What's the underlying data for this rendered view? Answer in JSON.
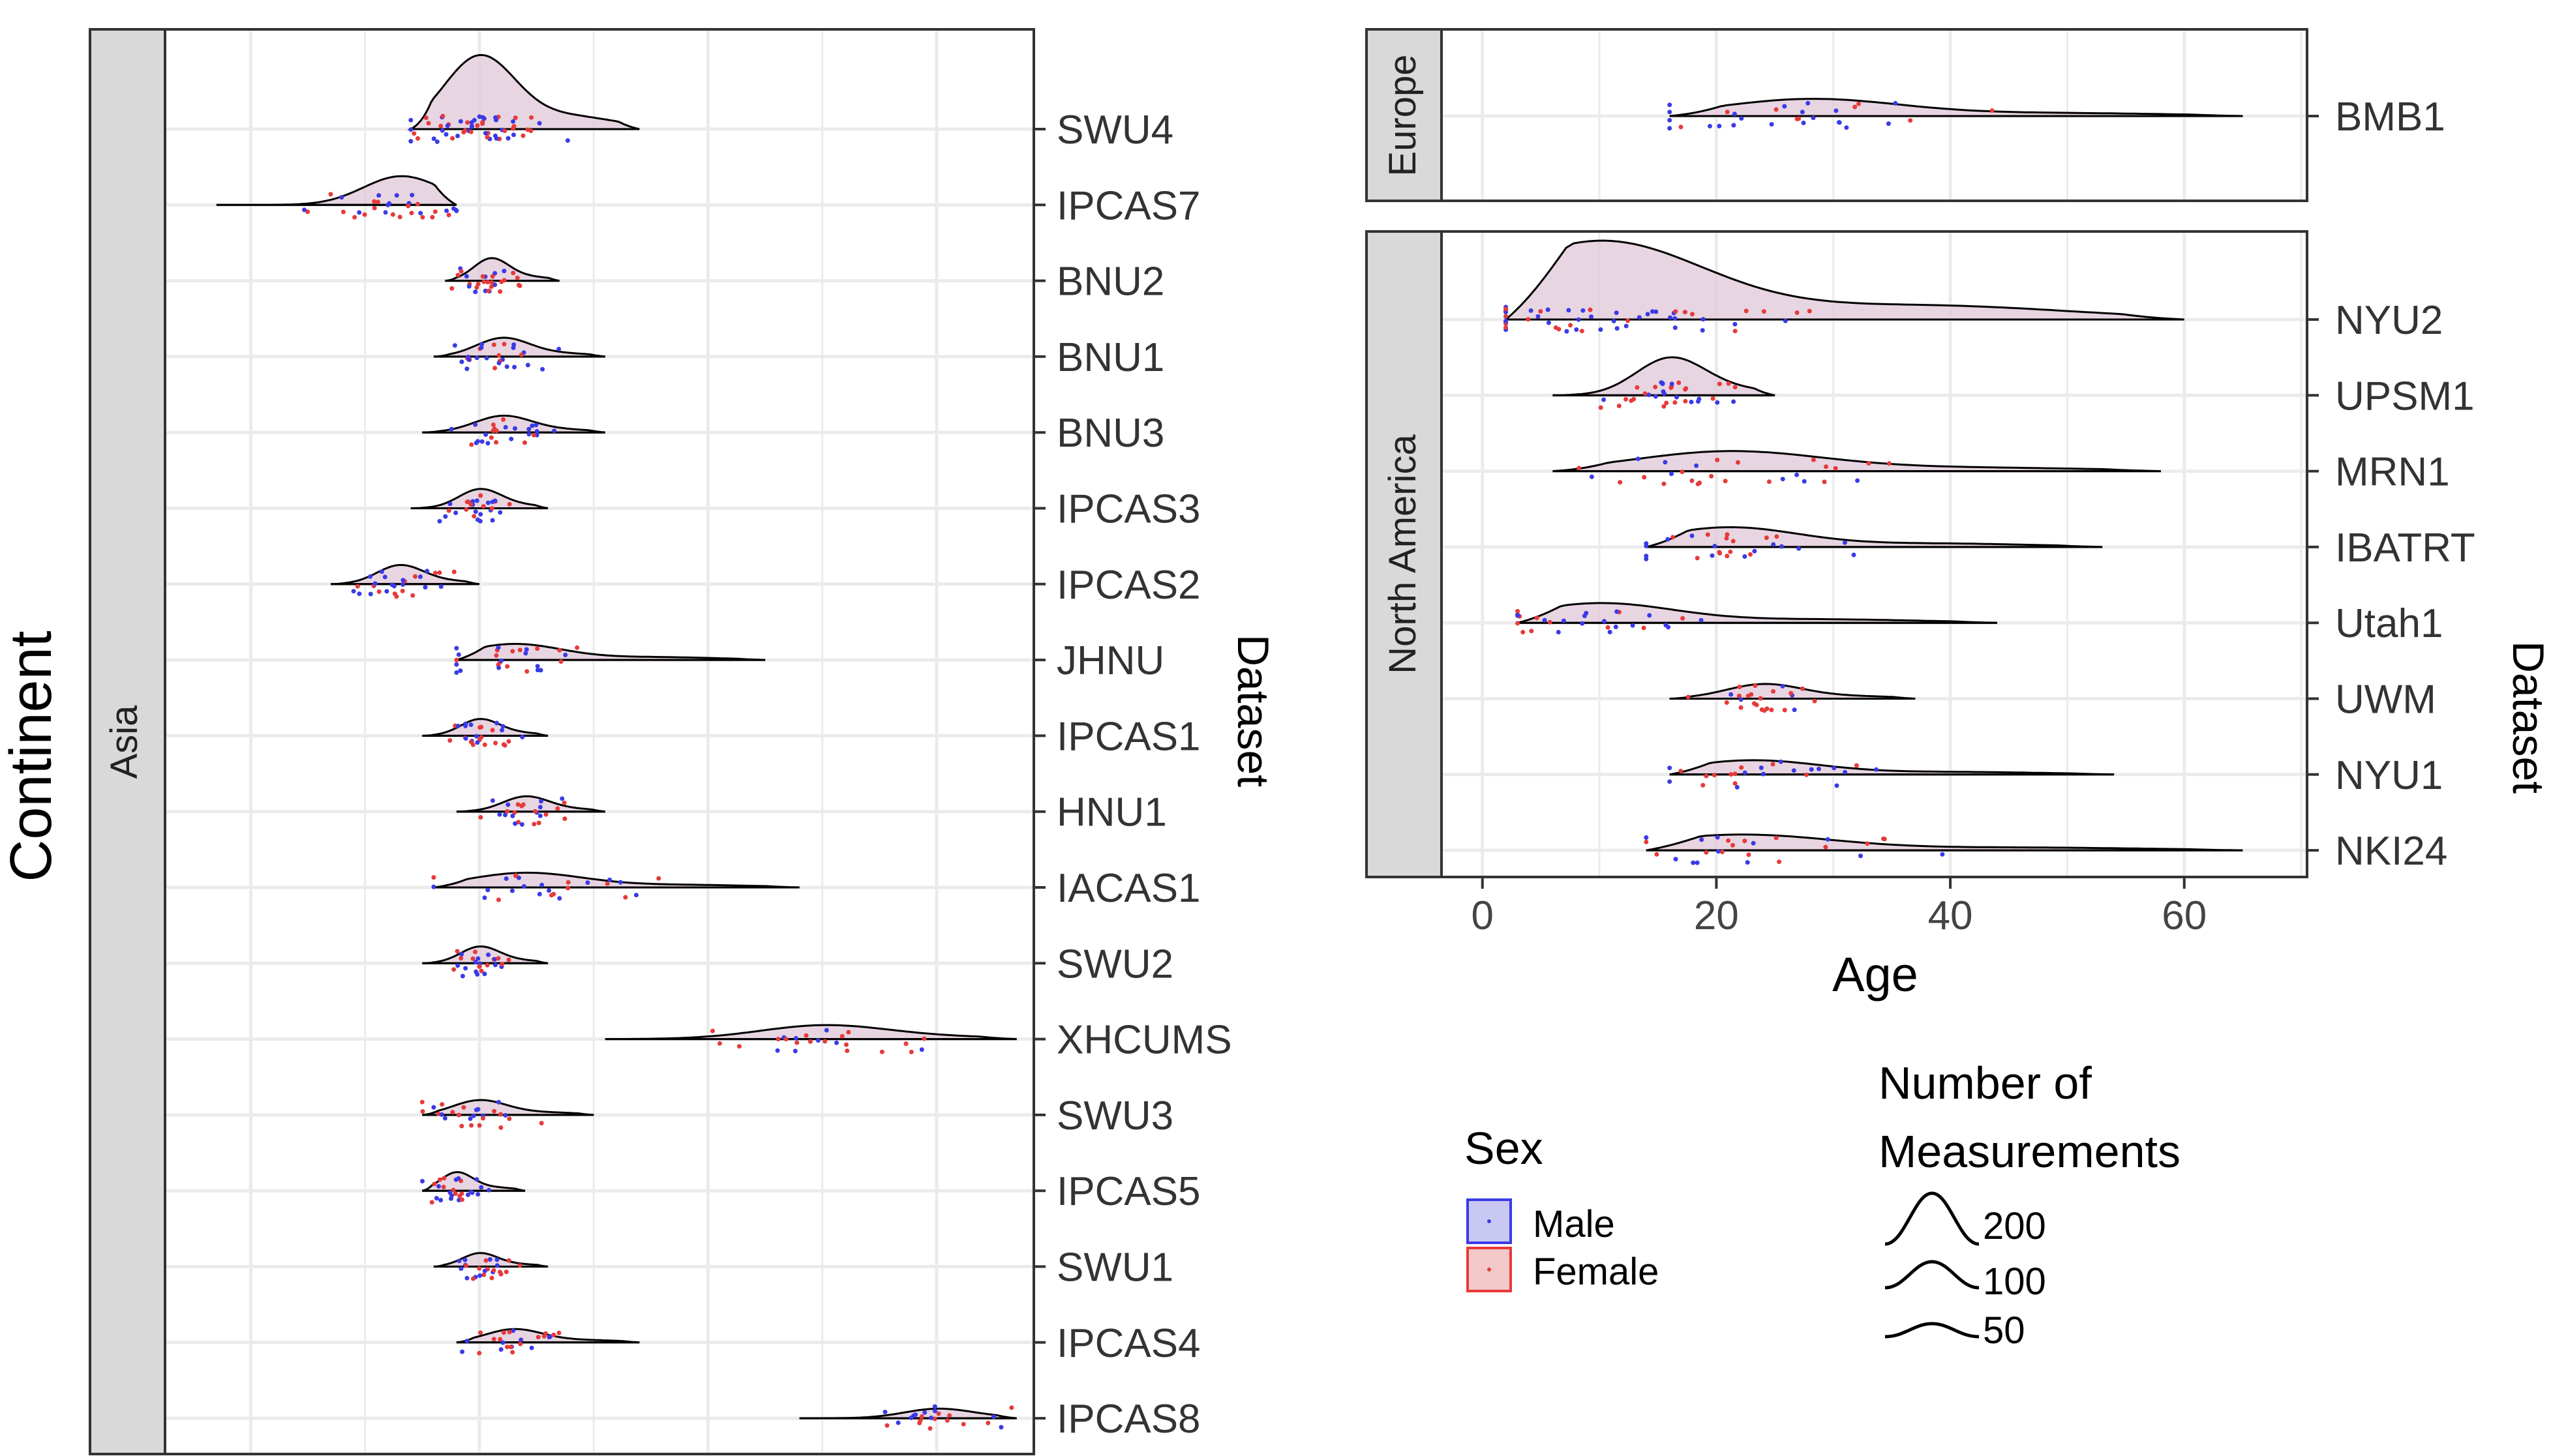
{
  "chart_data": {
    "type": "ridgeline",
    "ylabel_outer": "Continent",
    "ylabel_right": "Dataset",
    "xlabel": "Age",
    "x_ticks": [
      0,
      20,
      40,
      60
    ],
    "colors": {
      "male": "#3a3ae6",
      "female": "#e63a3a",
      "male_fill": "#c8c8f2",
      "female_fill": "#f2c8c8",
      "panel_strip": "#d9d9d9",
      "grid": "#ebebeb"
    },
    "legend_sex": {
      "title": "Sex",
      "entries": [
        {
          "label": "Male",
          "color": "#3a3ae6"
        },
        {
          "label": "Female",
          "color": "#e63a3a"
        }
      ]
    },
    "legend_size": {
      "title_line1": "Number of",
      "title_line2": "Measurements",
      "entries": [
        {
          "label": "200",
          "value": 200
        },
        {
          "label": "100",
          "value": 100
        },
        {
          "label": "50",
          "value": 50
        }
      ]
    },
    "panels": [
      {
        "continent": "Asia",
        "datasets": [
          {
            "name": "SWU4",
            "range": [
              14,
              34
            ],
            "mode": 20,
            "scale": 1.0
          },
          {
            "name": "IPCAS7",
            "range": [
              -3,
              18
            ],
            "mode": 13,
            "scale": 0.35
          },
          {
            "name": "BNU2",
            "range": [
              17,
              27
            ],
            "mode": 21,
            "scale": 0.3
          },
          {
            "name": "BNU1",
            "range": [
              16,
              31
            ],
            "mode": 22,
            "scale": 0.25
          },
          {
            "name": "BNU3",
            "range": [
              15,
              31
            ],
            "mode": 22,
            "scale": 0.22
          },
          {
            "name": "IPCAS3",
            "range": [
              14,
              26
            ],
            "mode": 20,
            "scale": 0.25
          },
          {
            "name": "IPCAS2",
            "range": [
              7,
              20
            ],
            "mode": 13,
            "scale": 0.25
          },
          {
            "name": "JHNU",
            "range": [
              18,
              45
            ],
            "mode": 23,
            "scale": 0.22
          },
          {
            "name": "IPCAS1",
            "range": [
              15,
              26
            ],
            "mode": 20,
            "scale": 0.22
          },
          {
            "name": "HNU1",
            "range": [
              18,
              31
            ],
            "mode": 24,
            "scale": 0.2
          },
          {
            "name": "IACAS1",
            "range": [
              16,
              48
            ],
            "mode": 24,
            "scale": 0.2
          },
          {
            "name": "SWU2",
            "range": [
              15,
              26
            ],
            "mode": 20,
            "scale": 0.22
          },
          {
            "name": "XHCUMS",
            "range": [
              31,
              67
            ],
            "mode": 50,
            "scale": 0.18
          },
          {
            "name": "SWU3",
            "range": [
              15,
              30
            ],
            "mode": 20,
            "scale": 0.2
          },
          {
            "name": "IPCAS5",
            "range": [
              15,
              24
            ],
            "mode": 18,
            "scale": 0.25
          },
          {
            "name": "SWU1",
            "range": [
              16,
              26
            ],
            "mode": 20,
            "scale": 0.18
          },
          {
            "name": "IPCAS4",
            "range": [
              18,
              34
            ],
            "mode": 23,
            "scale": 0.18
          },
          {
            "name": "IPCAS8",
            "range": [
              48,
              67
            ],
            "mode": 60,
            "scale": 0.12
          }
        ]
      },
      {
        "continent": "Europe",
        "datasets": [
          {
            "name": "BMB1",
            "range": [
              16,
              65
            ],
            "mode": 28,
            "scale": 0.3
          }
        ]
      },
      {
        "continent": "North America",
        "datasets": [
          {
            "name": "NYU2",
            "range": [
              2,
              60
            ],
            "mode": 10,
            "scale": 1.0
          },
          {
            "name": "UPSM1",
            "range": [
              6,
              25
            ],
            "mode": 16,
            "scale": 0.45
          },
          {
            "name": "MRN1",
            "range": [
              6,
              58
            ],
            "mode": 21,
            "scale": 0.25
          },
          {
            "name": "IBATRT",
            "range": [
              14,
              53
            ],
            "mode": 21,
            "scale": 0.25
          },
          {
            "name": "Utah1",
            "range": [
              3,
              44
            ],
            "mode": 10,
            "scale": 0.25
          },
          {
            "name": "UWM",
            "range": [
              16,
              37
            ],
            "mode": 24,
            "scale": 0.18
          },
          {
            "name": "NYU1",
            "range": [
              16,
              54
            ],
            "mode": 23,
            "scale": 0.18
          },
          {
            "name": "NKI24",
            "range": [
              14,
              65
            ],
            "mode": 22,
            "scale": 0.2
          }
        ]
      }
    ]
  }
}
